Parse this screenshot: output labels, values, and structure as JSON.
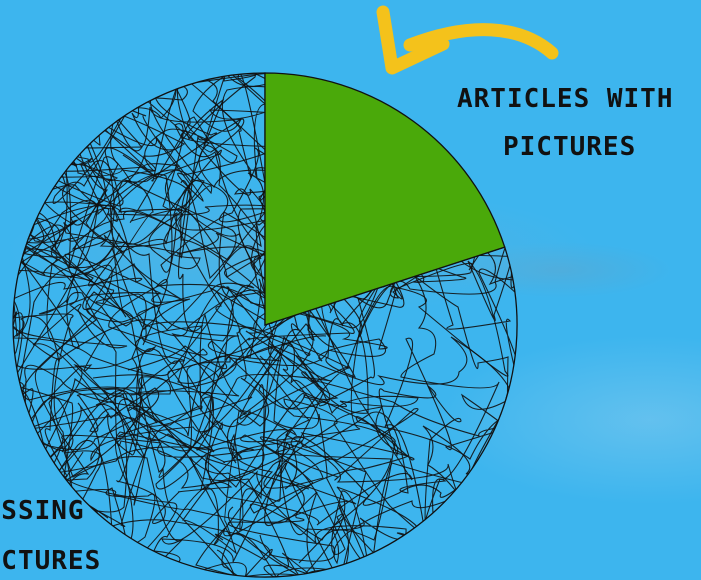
{
  "chart_data": {
    "type": "pie",
    "slices": [
      {
        "label": "ARTICLES WITH PICTURES",
        "value": 20,
        "color": "#4aa90a",
        "fill": "solid"
      },
      {
        "label": "MISSING PICTURES",
        "value": 80,
        "color": "#111111",
        "fill": "scribble"
      }
    ],
    "annotations": {
      "articles": {
        "line1": "ARTICLES WITH",
        "line2": "PICTURES"
      },
      "missing": {
        "line1": "MISSING",
        "line2": "PICTURES"
      }
    }
  },
  "colors": {
    "background": "#3db5ee",
    "arrow": "#f4c21b",
    "green_slice": "#4aa90a",
    "ink": "#111111"
  }
}
